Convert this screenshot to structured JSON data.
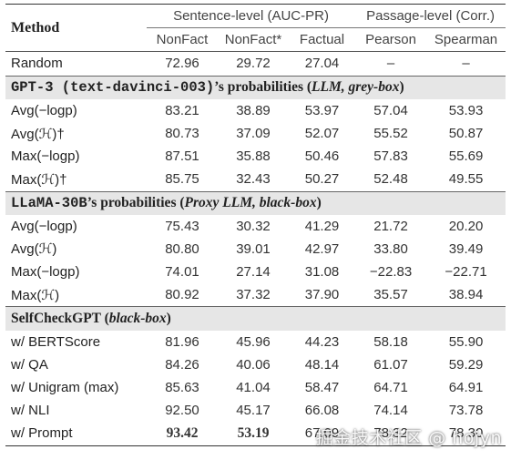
{
  "header": {
    "method": "Method",
    "group_sentence": "Sentence-level (AUC-PR)",
    "group_passage": "Passage-level (Corr.)",
    "columns": [
      "NonFact",
      "NonFact*",
      "Factual",
      "Pearson",
      "Spearman"
    ]
  },
  "random": {
    "method": "Random",
    "values": [
      "72.96",
      "29.72",
      "27.04",
      "–",
      "–"
    ]
  },
  "sections": [
    {
      "title_mono": "GPT-3 (text-davinci-003)",
      "title_rest": "’s probabilities (",
      "title_italic": "LLM, grey-box",
      "title_close": ")",
      "rows": [
        {
          "method": "Avg(−logp)",
          "values": [
            "83.21",
            "38.89",
            "53.97",
            "57.04",
            "53.93"
          ]
        },
        {
          "method": "Avg(ℋ)†",
          "values": [
            "80.73",
            "37.09",
            "52.07",
            "55.52",
            "50.87"
          ]
        },
        {
          "method": "Max(−logp)",
          "values": [
            "87.51",
            "35.88",
            "50.46",
            "57.83",
            "55.69"
          ]
        },
        {
          "method": "Max(ℋ)†",
          "values": [
            "85.75",
            "32.43",
            "50.27",
            "52.48",
            "49.55"
          ]
        }
      ]
    },
    {
      "title_mono": "LLaMA-30B",
      "title_rest": "’s probabilities (",
      "title_italic": "Proxy LLM, black-box",
      "title_close": ")",
      "rows": [
        {
          "method": "Avg(−logp)",
          "values": [
            "75.43",
            "30.32",
            "41.29",
            "21.72",
            "20.20"
          ]
        },
        {
          "method": "Avg(ℋ)",
          "values": [
            "80.80",
            "39.01",
            "42.97",
            "33.80",
            "39.49"
          ]
        },
        {
          "method": "Max(−logp)",
          "values": [
            "74.01",
            "27.14",
            "31.08",
            "−22.83",
            "−22.71"
          ]
        },
        {
          "method": "Max(ℋ)",
          "values": [
            "80.92",
            "37.32",
            "37.90",
            "35.57",
            "38.94"
          ]
        }
      ]
    },
    {
      "title_mono": "",
      "title_rest": "SelfCheckGPT (",
      "title_italic": "black-box",
      "title_close": ")",
      "rows": [
        {
          "method": "w/ BERTScore",
          "values": [
            "81.96",
            "45.96",
            "44.23",
            "58.18",
            "55.90"
          ]
        },
        {
          "method": "w/ QA",
          "values": [
            "84.26",
            "40.06",
            "48.14",
            "61.07",
            "59.29"
          ]
        },
        {
          "method": "w/ Unigram (max)",
          "values": [
            "85.63",
            "41.04",
            "58.47",
            "64.71",
            "64.91"
          ]
        },
        {
          "method": "w/ NLI",
          "values": [
            "92.50",
            "45.17",
            "66.08",
            "74.14",
            "73.78"
          ]
        },
        {
          "method": "w/ Prompt",
          "values": [
            "93.42",
            "53.19",
            "67.09",
            "78.32",
            "78.30"
          ],
          "bold": true
        }
      ]
    }
  ],
  "watermark": "掘金技术社区 @ hojyn"
}
